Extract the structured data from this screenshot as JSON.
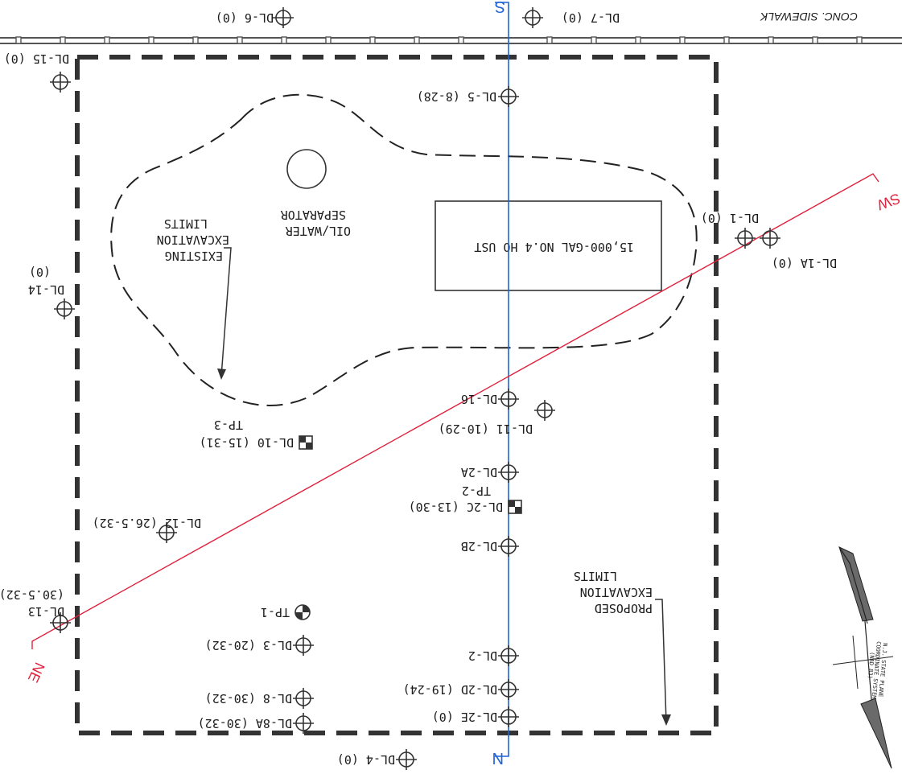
{
  "plan": {
    "sidewalk": "CONC. SIDEWALK",
    "section_north": "N",
    "section_south": "S",
    "section_ne": "NE",
    "section_sw": "SW",
    "ust": "15,000-GAL NO.4 HO UST",
    "separator": [
      "OIL/WATER",
      "SEPARATOR"
    ],
    "existing_limits": [
      "EXISTING",
      "EXCAVATION",
      "LIMITS"
    ],
    "proposed_limits": [
      "PROPOSED",
      "EXCAVATION",
      "LIMITS"
    ],
    "north_arrow": [
      "N.J. STATE PLANE",
      "COORDINATE SYSTEM",
      "(NAD 83)"
    ]
  },
  "wells": [
    {
      "id": "DL-6 (0)"
    },
    {
      "id": "DL-7 (0)"
    },
    {
      "id": "DL-15 (0)"
    },
    {
      "id": "DL-5 (8-28)"
    },
    {
      "id": "DL-1 (0)"
    },
    {
      "id": "DL-1A (0)"
    },
    {
      "id": "DL-14",
      "note": "(0)"
    },
    {
      "id": "DL-16"
    },
    {
      "id": "DL-11 (10-29)"
    },
    {
      "id": "DL-2A"
    },
    {
      "id": "DL-12 (26.5-32)"
    },
    {
      "id": "DL-2B"
    },
    {
      "id": "DL-13",
      "note": "(30.5-32)"
    },
    {
      "id": "DL-3 (20-32)"
    },
    {
      "id": "DL-2"
    },
    {
      "id": "DL-2D (19-24)"
    },
    {
      "id": "DL-8 (30-32)"
    },
    {
      "id": "DL-8A (30-32)"
    },
    {
      "id": "DL-2E (0)"
    },
    {
      "id": "DL-4 (0)"
    }
  ],
  "test_pits": [
    {
      "id": "DL-10 (15-31)",
      "tp": "TP-3"
    },
    {
      "id": "DL-2C (13-30)",
      "tp": "TP-2"
    },
    {
      "id": "TP-1"
    }
  ]
}
